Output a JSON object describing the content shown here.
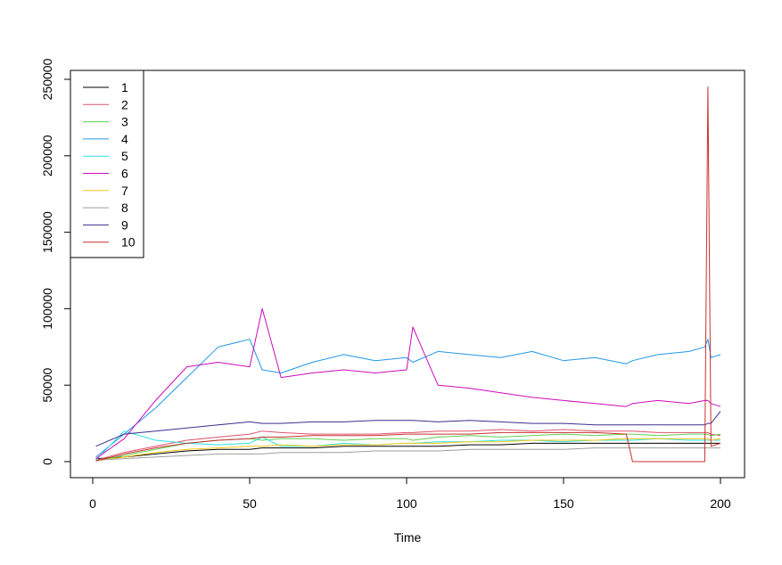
{
  "chart_data": {
    "type": "line",
    "title": "",
    "xlabel": "Time",
    "ylabel": "",
    "xlim": [
      0,
      200
    ],
    "ylim": [
      0,
      250000
    ],
    "x_ticks": [
      {
        "value": 0,
        "label": "0"
      },
      {
        "value": 50,
        "label": "50"
      },
      {
        "value": 100,
        "label": "100"
      },
      {
        "value": 150,
        "label": "150"
      },
      {
        "value": 200,
        "label": "200"
      }
    ],
    "y_ticks": [
      {
        "value": 0,
        "label": "0"
      },
      {
        "value": 50000,
        "label": "50000"
      },
      {
        "value": 100000,
        "label": "100000"
      },
      {
        "value": 150000,
        "label": "150000"
      },
      {
        "value": 200000,
        "label": "200000"
      },
      {
        "value": 250000,
        "label": "250000"
      }
    ],
    "grid": false,
    "legend_position": "top-left",
    "x": [
      1,
      10,
      20,
      30,
      40,
      50,
      54,
      60,
      70,
      80,
      90,
      100,
      102,
      110,
      120,
      130,
      140,
      150,
      160,
      170,
      172,
      180,
      190,
      195,
      196,
      197,
      200
    ],
    "series": [
      {
        "name": "1",
        "color": "#000000",
        "values": [
          2000,
          3000,
          5000,
          7000,
          8000,
          8000,
          9000,
          9000,
          9000,
          10000,
          10000,
          10000,
          10000,
          10000,
          11000,
          11000,
          12000,
          12000,
          12000,
          12000,
          12000,
          12000,
          12000,
          12000,
          12000,
          12000,
          12000
        ]
      },
      {
        "name": "2",
        "color": "#DF536B",
        "values": [
          1000,
          6000,
          10000,
          14000,
          16000,
          18000,
          20000,
          19000,
          18000,
          18000,
          18000,
          19000,
          19000,
          20000,
          20000,
          21000,
          20000,
          21000,
          20000,
          20000,
          20000,
          19000,
          19000,
          19000,
          19000,
          18000,
          17000
        ]
      },
      {
        "name": "3",
        "color": "#61D04F",
        "values": [
          500,
          4000,
          8000,
          12000,
          14000,
          15000,
          14000,
          15000,
          15000,
          14000,
          15000,
          15000,
          14000,
          16000,
          17000,
          16000,
          17000,
          18000,
          17000,
          18000,
          18000,
          17000,
          18000,
          18000,
          18000,
          17000,
          18000
        ]
      },
      {
        "name": "4",
        "color": "#2297E6",
        "values": [
          3000,
          18000,
          35000,
          55000,
          75000,
          80000,
          60000,
          58000,
          65000,
          70000,
          66000,
          68000,
          65000,
          72000,
          70000,
          68000,
          72000,
          66000,
          68000,
          64000,
          66000,
          70000,
          72000,
          75000,
          80000,
          68000,
          70000
        ]
      },
      {
        "name": "5",
        "color": "#28E2E5",
        "values": [
          1000,
          20000,
          14000,
          12000,
          11000,
          12000,
          16000,
          10000,
          10000,
          12000,
          11000,
          12000,
          12000,
          13000,
          13000,
          14000,
          14000,
          13000,
          14000,
          14000,
          14000,
          15000,
          14000,
          14000,
          14000,
          14000,
          14000
        ]
      },
      {
        "name": "6",
        "color": "#CD0BBC",
        "values": [
          2000,
          15000,
          40000,
          62000,
          65000,
          62000,
          100000,
          55000,
          58000,
          60000,
          58000,
          60000,
          88000,
          50000,
          48000,
          45000,
          42000,
          40000,
          38000,
          36000,
          38000,
          40000,
          38000,
          40000,
          40000,
          38000,
          36000
        ]
      },
      {
        "name": "7",
        "color": "#F5C710",
        "values": [
          500,
          3000,
          6000,
          8000,
          9000,
          10000,
          10000,
          11000,
          10000,
          11000,
          11000,
          12000,
          12000,
          12000,
          13000,
          13000,
          14000,
          14000,
          14000,
          15000,
          15000,
          15000,
          15000,
          15000,
          15000,
          14000,
          15000
        ]
      },
      {
        "name": "8",
        "color": "#9E9E9E",
        "values": [
          1000,
          2000,
          3000,
          4000,
          5000,
          5000,
          5000,
          6000,
          6000,
          6000,
          7000,
          7000,
          7000,
          7000,
          8000,
          8000,
          8000,
          8000,
          9000,
          9000,
          9000,
          9000,
          9000,
          9000,
          9000,
          9000,
          9000
        ]
      },
      {
        "name": "9",
        "color": "#3B2F8F",
        "values": [
          10000,
          18000,
          20000,
          22000,
          24000,
          26000,
          25000,
          25000,
          26000,
          26000,
          27000,
          27000,
          27000,
          26000,
          27000,
          26000,
          25000,
          25000,
          24000,
          24000,
          24000,
          24000,
          24000,
          24000,
          25000,
          25000,
          33000
        ]
      },
      {
        "name": "10",
        "color": "#C8302E",
        "values": [
          500,
          5000,
          9000,
          12000,
          14000,
          15000,
          16000,
          16000,
          17000,
          17000,
          17000,
          18000,
          18000,
          18000,
          18000,
          19000,
          19000,
          19000,
          19000,
          18000,
          0,
          0,
          0,
          0,
          245000,
          10000,
          12000
        ]
      }
    ]
  }
}
